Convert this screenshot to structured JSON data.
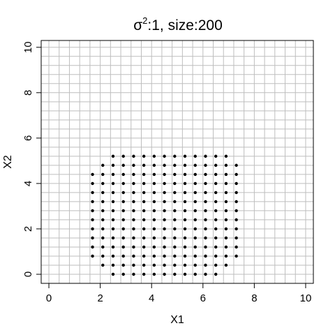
{
  "chart_data": {
    "type": "scatter",
    "title": {
      "symbol": "σ",
      "superscript": "2",
      "rest": ":1, size:200"
    },
    "xlabel": "X1",
    "ylabel": "X2",
    "xlim": [
      -0.3,
      10.3
    ],
    "ylim": [
      -0.4,
      10.3
    ],
    "x_ticks": [
      0,
      2,
      4,
      6,
      8,
      10
    ],
    "y_ticks": [
      0,
      2,
      4,
      6,
      8,
      10
    ],
    "x_tick_labels": [
      "0",
      "2",
      "4",
      "6",
      "8",
      "10"
    ],
    "y_tick_labels": [
      "0",
      "2",
      "4",
      "6",
      "8",
      "10"
    ],
    "grid": true,
    "grid_step": 0.4,
    "grid_color": "#bebebe",
    "point_color": "#000000",
    "points": [
      [
        2.5,
        0.0
      ],
      [
        2.9,
        0.0
      ],
      [
        3.3,
        0.0
      ],
      [
        3.7,
        0.0
      ],
      [
        4.1,
        0.0
      ],
      [
        4.5,
        0.0
      ],
      [
        4.9,
        0.0
      ],
      [
        5.3,
        0.0
      ],
      [
        5.7,
        0.0
      ],
      [
        6.1,
        0.0
      ],
      [
        6.5,
        0.0
      ],
      [
        2.1,
        0.4
      ],
      [
        2.5,
        0.4
      ],
      [
        2.9,
        0.4
      ],
      [
        3.3,
        0.4
      ],
      [
        3.7,
        0.4
      ],
      [
        4.1,
        0.4
      ],
      [
        4.5,
        0.4
      ],
      [
        4.9,
        0.4
      ],
      [
        5.3,
        0.4
      ],
      [
        5.7,
        0.4
      ],
      [
        6.1,
        0.4
      ],
      [
        6.5,
        0.4
      ],
      [
        6.9,
        0.4
      ],
      [
        1.7,
        0.8
      ],
      [
        2.1,
        0.8
      ],
      [
        2.5,
        0.8
      ],
      [
        2.9,
        0.8
      ],
      [
        3.3,
        0.8
      ],
      [
        3.7,
        0.8
      ],
      [
        4.1,
        0.8
      ],
      [
        4.5,
        0.8
      ],
      [
        4.9,
        0.8
      ],
      [
        5.3,
        0.8
      ],
      [
        5.7,
        0.8
      ],
      [
        6.1,
        0.8
      ],
      [
        6.5,
        0.8
      ],
      [
        6.9,
        0.8
      ],
      [
        7.3,
        0.8
      ],
      [
        1.7,
        1.2
      ],
      [
        2.1,
        1.2
      ],
      [
        2.5,
        1.2
      ],
      [
        2.9,
        1.2
      ],
      [
        3.3,
        1.2
      ],
      [
        3.7,
        1.2
      ],
      [
        4.1,
        1.2
      ],
      [
        4.5,
        1.2
      ],
      [
        4.9,
        1.2
      ],
      [
        5.3,
        1.2
      ],
      [
        5.7,
        1.2
      ],
      [
        6.1,
        1.2
      ],
      [
        6.5,
        1.2
      ],
      [
        6.9,
        1.2
      ],
      [
        7.3,
        1.2
      ],
      [
        1.7,
        1.6
      ],
      [
        2.1,
        1.6
      ],
      [
        2.5,
        1.6
      ],
      [
        2.9,
        1.6
      ],
      [
        3.3,
        1.6
      ],
      [
        3.7,
        1.6
      ],
      [
        4.1,
        1.6
      ],
      [
        4.5,
        1.6
      ],
      [
        4.9,
        1.6
      ],
      [
        5.3,
        1.6
      ],
      [
        5.7,
        1.6
      ],
      [
        6.1,
        1.6
      ],
      [
        6.5,
        1.6
      ],
      [
        6.9,
        1.6
      ],
      [
        7.3,
        1.6
      ],
      [
        1.7,
        2.0
      ],
      [
        2.1,
        2.0
      ],
      [
        2.5,
        2.0
      ],
      [
        2.9,
        2.0
      ],
      [
        3.3,
        2.0
      ],
      [
        3.7,
        2.0
      ],
      [
        4.1,
        2.0
      ],
      [
        4.5,
        2.0
      ],
      [
        4.9,
        2.0
      ],
      [
        5.3,
        2.0
      ],
      [
        5.7,
        2.0
      ],
      [
        6.1,
        2.0
      ],
      [
        6.5,
        2.0
      ],
      [
        6.9,
        2.0
      ],
      [
        7.3,
        2.0
      ],
      [
        1.7,
        2.4
      ],
      [
        2.1,
        2.4
      ],
      [
        2.5,
        2.4
      ],
      [
        2.9,
        2.4
      ],
      [
        3.3,
        2.4
      ],
      [
        3.7,
        2.4
      ],
      [
        4.1,
        2.4
      ],
      [
        4.5,
        2.4
      ],
      [
        4.9,
        2.4
      ],
      [
        5.3,
        2.4
      ],
      [
        5.7,
        2.4
      ],
      [
        6.1,
        2.4
      ],
      [
        6.5,
        2.4
      ],
      [
        6.9,
        2.4
      ],
      [
        7.3,
        2.4
      ],
      [
        1.7,
        2.8
      ],
      [
        2.1,
        2.8
      ],
      [
        2.5,
        2.8
      ],
      [
        2.9,
        2.8
      ],
      [
        3.3,
        2.8
      ],
      [
        3.7,
        2.8
      ],
      [
        4.1,
        2.8
      ],
      [
        4.5,
        2.8
      ],
      [
        4.9,
        2.8
      ],
      [
        5.3,
        2.8
      ],
      [
        5.7,
        2.8
      ],
      [
        6.1,
        2.8
      ],
      [
        6.5,
        2.8
      ],
      [
        6.9,
        2.8
      ],
      [
        7.3,
        2.8
      ],
      [
        1.7,
        3.2
      ],
      [
        2.1,
        3.2
      ],
      [
        2.5,
        3.2
      ],
      [
        2.9,
        3.2
      ],
      [
        3.3,
        3.2
      ],
      [
        3.7,
        3.2
      ],
      [
        4.1,
        3.2
      ],
      [
        4.5,
        3.2
      ],
      [
        4.9,
        3.2
      ],
      [
        5.3,
        3.2
      ],
      [
        5.7,
        3.2
      ],
      [
        6.1,
        3.2
      ],
      [
        6.5,
        3.2
      ],
      [
        6.9,
        3.2
      ],
      [
        7.3,
        3.2
      ],
      [
        1.7,
        3.6
      ],
      [
        2.1,
        3.6
      ],
      [
        2.5,
        3.6
      ],
      [
        2.9,
        3.6
      ],
      [
        3.3,
        3.6
      ],
      [
        3.7,
        3.6
      ],
      [
        4.1,
        3.6
      ],
      [
        4.5,
        3.6
      ],
      [
        4.9,
        3.6
      ],
      [
        5.3,
        3.6
      ],
      [
        5.7,
        3.6
      ],
      [
        6.1,
        3.6
      ],
      [
        6.5,
        3.6
      ],
      [
        6.9,
        3.6
      ],
      [
        7.3,
        3.6
      ],
      [
        1.7,
        4.0
      ],
      [
        2.1,
        4.0
      ],
      [
        2.5,
        4.0
      ],
      [
        2.9,
        4.0
      ],
      [
        3.3,
        4.0
      ],
      [
        3.7,
        4.0
      ],
      [
        4.1,
        4.0
      ],
      [
        4.5,
        4.0
      ],
      [
        4.9,
        4.0
      ],
      [
        5.3,
        4.0
      ],
      [
        5.7,
        4.0
      ],
      [
        6.1,
        4.0
      ],
      [
        6.5,
        4.0
      ],
      [
        6.9,
        4.0
      ],
      [
        7.3,
        4.0
      ],
      [
        1.7,
        4.4
      ],
      [
        2.1,
        4.4
      ],
      [
        2.5,
        4.4
      ],
      [
        2.9,
        4.4
      ],
      [
        3.3,
        4.4
      ],
      [
        3.7,
        4.4
      ],
      [
        4.1,
        4.4
      ],
      [
        4.5,
        4.4
      ],
      [
        4.9,
        4.4
      ],
      [
        5.3,
        4.4
      ],
      [
        5.7,
        4.4
      ],
      [
        6.1,
        4.4
      ],
      [
        6.5,
        4.4
      ],
      [
        6.9,
        4.4
      ],
      [
        7.3,
        4.4
      ],
      [
        2.1,
        4.8
      ],
      [
        2.5,
        4.8
      ],
      [
        2.9,
        4.8
      ],
      [
        3.3,
        4.8
      ],
      [
        3.7,
        4.8
      ],
      [
        4.1,
        4.8
      ],
      [
        4.5,
        4.8
      ],
      [
        4.9,
        4.8
      ],
      [
        5.3,
        4.8
      ],
      [
        5.7,
        4.8
      ],
      [
        6.1,
        4.8
      ],
      [
        6.5,
        4.8
      ],
      [
        6.9,
        4.8
      ],
      [
        7.3,
        4.8
      ],
      [
        2.5,
        5.2
      ],
      [
        2.9,
        5.2
      ],
      [
        3.3,
        5.2
      ],
      [
        3.7,
        5.2
      ],
      [
        4.1,
        5.2
      ],
      [
        4.5,
        5.2
      ],
      [
        4.9,
        5.2
      ],
      [
        5.3,
        5.2
      ],
      [
        5.7,
        5.2
      ],
      [
        6.1,
        5.2
      ],
      [
        6.5,
        5.2
      ],
      [
        6.9,
        5.2
      ]
    ]
  }
}
